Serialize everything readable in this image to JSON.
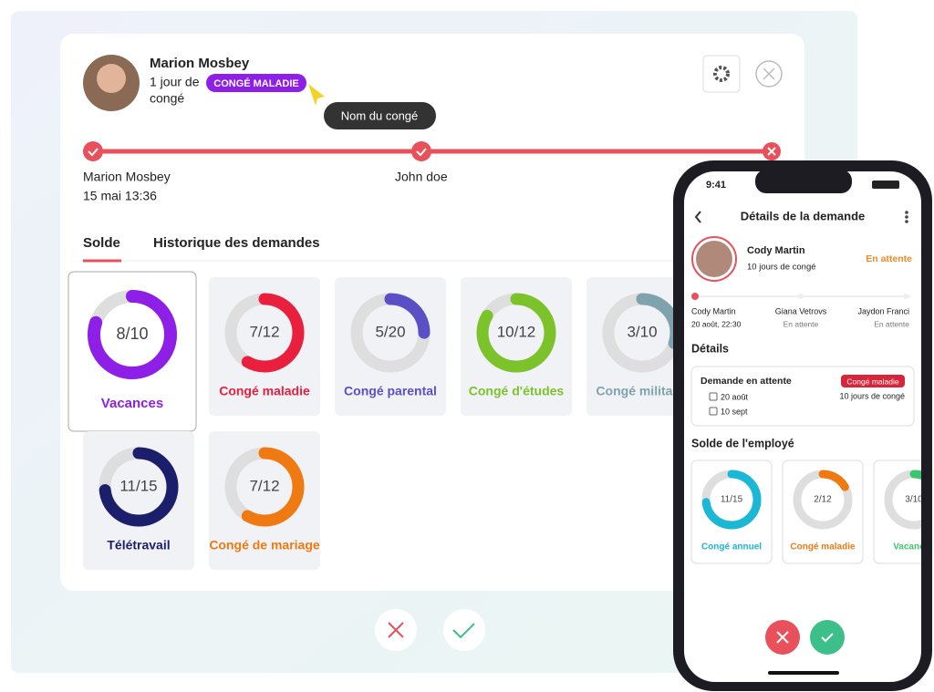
{
  "header": {
    "name": "Marion Mosbey",
    "duration": "1 jour de",
    "duration_unit": "congé",
    "badge": "CONGÉ MALADIE",
    "tooltip": "Nom du congé"
  },
  "timeline": [
    {
      "name": "Marion Mosbey",
      "date": "15 mai 13:36"
    },
    {
      "name": "John doe"
    }
  ],
  "tabs": [
    "Solde",
    "Historique des demandes"
  ],
  "cards": [
    {
      "label": "Vacances",
      "ratio": "8/10",
      "used": 8,
      "total": 10,
      "color": "#8e1fe6"
    },
    {
      "label": "Congé maladie",
      "ratio": "7/12",
      "used": 7,
      "total": 12,
      "color": "#e8203e"
    },
    {
      "label": "Congé parental",
      "ratio": "5/20",
      "used": 5,
      "total": 20,
      "color": "#5b4fc6"
    },
    {
      "label": "Congé d'études",
      "ratio": "10/12",
      "used": 10,
      "total": 12,
      "color": "#7cc22b"
    },
    {
      "label": "Congé militaire",
      "ratio": "3/10",
      "used": 3,
      "total": 10,
      "color": "#7fa3ad"
    },
    {
      "label": "Télétravail",
      "ratio": "11/15",
      "used": 11,
      "total": 15,
      "color": "#1b1f6b"
    },
    {
      "label": "Congé de mariage",
      "ratio": "7/12",
      "used": 7,
      "total": 12,
      "color": "#f07a12"
    }
  ],
  "phone": {
    "time": "9:41",
    "title": "Détails de la demande",
    "person": "Cody Martin",
    "days": "10 jours de congé",
    "status": "En attente",
    "steps": [
      {
        "name": "Cody Martin",
        "detail": "20 août, 22:30"
      },
      {
        "name": "Giana Vetrovs",
        "detail": "En attente"
      },
      {
        "name": "Jaydon Franci",
        "detail": "En attente"
      }
    ],
    "details_title": "Détails",
    "request": {
      "title": "Demande en attente",
      "badge": "Congé maladie",
      "from": "20 août",
      "to": "10 sept",
      "days": "10 jours de congé"
    },
    "balance_title": "Solde de l'employé",
    "cards": [
      {
        "label": "Congé annuel",
        "ratio": "11/15",
        "used": 11,
        "total": 15,
        "color": "#1bb8d6"
      },
      {
        "label": "Congé maladie",
        "ratio": "2/12",
        "used": 2,
        "total": 12,
        "color": "#f07a12"
      },
      {
        "label": "Vacances",
        "ratio": "3/10",
        "used": 3,
        "total": 10,
        "color": "#3ec46d"
      }
    ]
  }
}
